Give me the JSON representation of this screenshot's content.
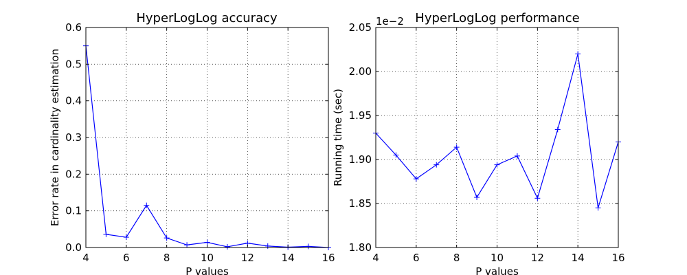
{
  "chart_data": [
    {
      "type": "line",
      "title": "HyperLogLog accuracy",
      "xlabel": "P values",
      "ylabel": "Error rate in cardinality estimation",
      "xlim": [
        4,
        16
      ],
      "ylim": [
        0,
        0.6
      ],
      "xticks": [
        4,
        6,
        8,
        10,
        12,
        14,
        16
      ],
      "yticks": [
        0.0,
        0.1,
        0.2,
        0.3,
        0.4,
        0.5,
        0.6
      ],
      "xtick_labels": [
        "4",
        "6",
        "8",
        "10",
        "12",
        "14",
        "16"
      ],
      "ytick_labels": [
        "0.0",
        "0.1",
        "0.2",
        "0.3",
        "0.4",
        "0.5",
        "0.6"
      ],
      "offset_text": "",
      "grid": true,
      "color": "#0000ff",
      "marker": "+",
      "x": [
        4,
        5,
        6,
        7,
        8,
        9,
        10,
        11,
        12,
        13,
        14,
        15,
        16
      ],
      "y": [
        0.55,
        0.036,
        0.028,
        0.115,
        0.026,
        0.007,
        0.014,
        0.002,
        0.012,
        0.004,
        0.001,
        0.003,
        0.0
      ]
    },
    {
      "type": "line",
      "title": "HyperLogLog performance",
      "xlabel": "P values",
      "ylabel": "Running time (sec)",
      "xlim": [
        4,
        16
      ],
      "ylim": [
        1.8,
        2.05
      ],
      "xticks": [
        4,
        6,
        8,
        10,
        12,
        14,
        16
      ],
      "yticks": [
        1.8,
        1.85,
        1.9,
        1.95,
        2.0,
        2.05
      ],
      "xtick_labels": [
        "4",
        "6",
        "8",
        "10",
        "12",
        "14",
        "16"
      ],
      "ytick_labels": [
        "1.80",
        "1.85",
        "1.90",
        "1.95",
        "2.00",
        "2.05"
      ],
      "offset_text": "1e−2",
      "grid": true,
      "color": "#0000ff",
      "marker": "+",
      "x": [
        4,
        5,
        6,
        7,
        8,
        9,
        10,
        11,
        12,
        13,
        14,
        15,
        16
      ],
      "y": [
        1.93,
        1.905,
        1.878,
        1.894,
        1.914,
        1.857,
        1.894,
        1.904,
        1.856,
        1.934,
        2.02,
        1.845,
        1.92
      ]
    }
  ]
}
